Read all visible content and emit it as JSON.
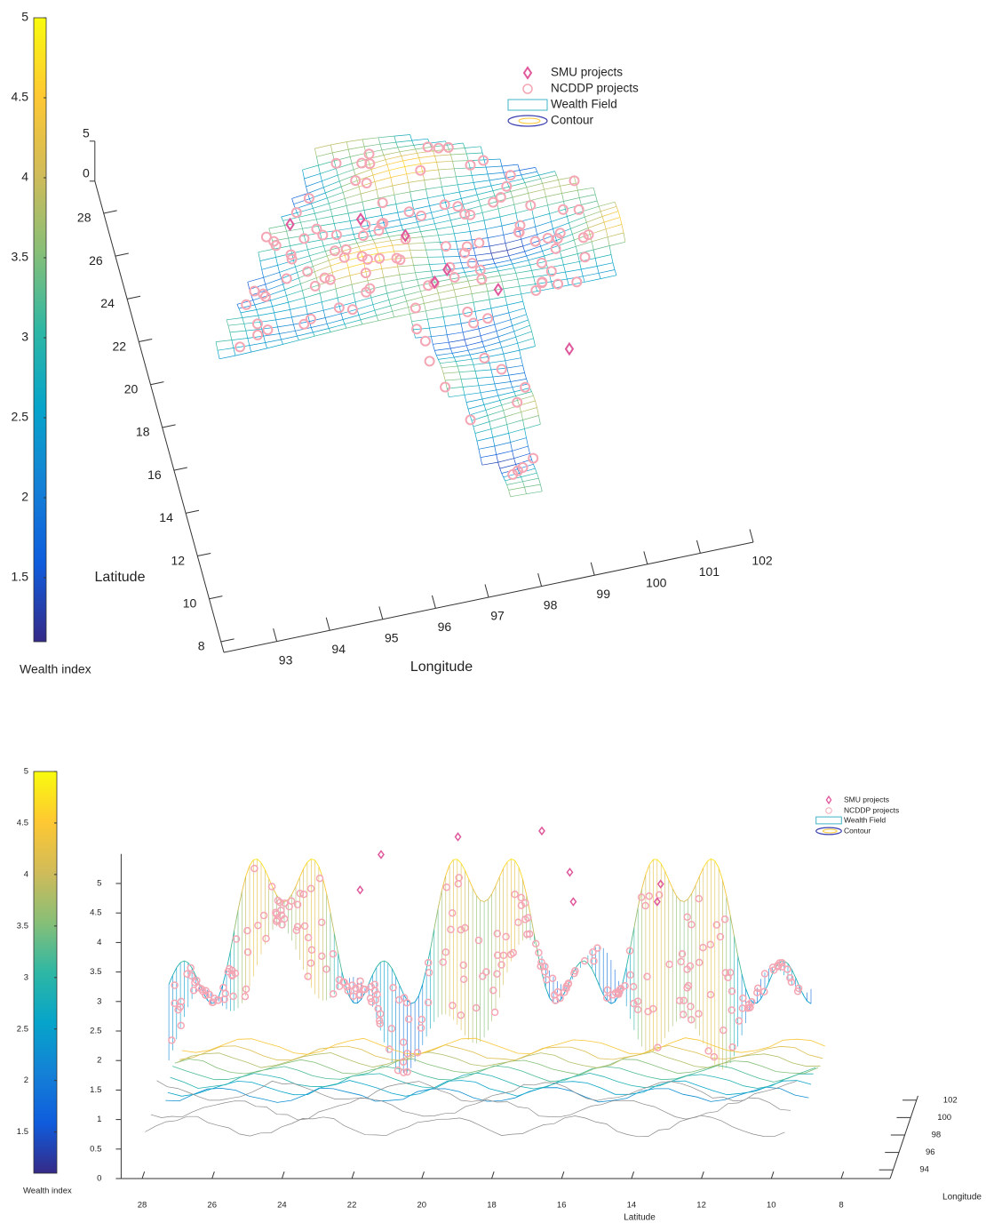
{
  "colormap": [
    "#352a87",
    "#0f5cdd",
    "#1481d6",
    "#06a4ca",
    "#2eb7a4",
    "#87bf77",
    "#d1bb59",
    "#fec832",
    "#f9fb0e"
  ],
  "chart_data": [
    {
      "type": "surface3d",
      "colorbar_label": "Wealth index",
      "clim": [
        1.1,
        5
      ],
      "cticks": [
        1.5,
        2,
        2.5,
        3,
        3.5,
        4,
        4.5,
        5
      ],
      "xlabel": "Longitude",
      "xlim": [
        92,
        102
      ],
      "xticks": [
        93,
        94,
        95,
        96,
        97,
        98,
        99,
        100,
        101,
        102
      ],
      "ylabel": "Latitude",
      "ylim": [
        7.5,
        29.5
      ],
      "yticks": [
        8,
        10,
        12,
        14,
        16,
        18,
        20,
        22,
        24,
        26,
        28
      ],
      "zlim": [
        0,
        5
      ],
      "zticks": [
        0,
        5
      ],
      "legend": [
        {
          "name": "SMU projects",
          "marker": "diamond",
          "color": "#e0589c"
        },
        {
          "name": "NCDDP projects",
          "marker": "circle",
          "color": "#f4a6b4"
        },
        {
          "name": "Wealth Field",
          "marker": "rect",
          "color": "#3fb4c4"
        },
        {
          "name": "Contour",
          "marker": "ellipse",
          "color": "#3a3fb0"
        }
      ]
    },
    {
      "type": "curtain3d",
      "colorbar_label": "Wealth index",
      "clim": [
        1.1,
        5
      ],
      "cticks": [
        1.5,
        2,
        2.5,
        3,
        3.5,
        4,
        4.5,
        5
      ],
      "xlabel": "Longitude",
      "xlim": [
        93,
        102.5
      ],
      "xticks": [
        94,
        96,
        98,
        100,
        102
      ],
      "ylabel": "Latitude",
      "ylim": [
        6.6,
        28.6
      ],
      "yticks": [
        28,
        26,
        24,
        22,
        20,
        18,
        16,
        14,
        12,
        10,
        8
      ],
      "zlim": [
        0,
        5.5
      ],
      "zticks": [
        0,
        0.5,
        1,
        1.5,
        2,
        2.5,
        3,
        3.5,
        4,
        4.5,
        5
      ],
      "legend": [
        {
          "name": "SMU projects",
          "marker": "diamond",
          "color": "#e0589c"
        },
        {
          "name": "NCDDP projects",
          "marker": "circle",
          "color": "#f4a6b4"
        },
        {
          "name": "Wealth Field",
          "marker": "rect",
          "color": "#3fb4c4"
        },
        {
          "name": "Contour",
          "marker": "ellipse",
          "color": "#3a3fb0"
        }
      ]
    }
  ]
}
